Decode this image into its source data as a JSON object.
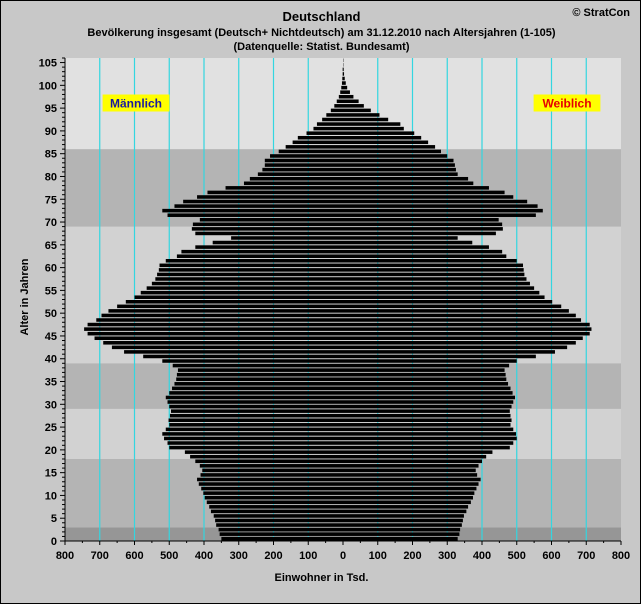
{
  "header": {
    "title": "Deutschland",
    "subtitle": "Bevölkerung  insgesamt (Deutsch+ Nichtdeutsch) am 31.12.2010 nach Altersjahren (1-105)",
    "source": "(Datenquelle: Statist. Bundesamt)",
    "copyright": "© StratCon"
  },
  "colors": {
    "bars": "#000000",
    "gridlines": "#33d6e0",
    "label_male_text": "#1a1aa0",
    "label_female_text": "#e60000",
    "label_background": "#ffff00",
    "band_dark": "#969696",
    "band_mid": "#b4b4b4",
    "band_light": "#d2d2d2",
    "band_lightest": "#e1e1e1"
  },
  "chart_data": {
    "type": "bar",
    "orientation": "horizontal-population-pyramid",
    "title": "Deutschland",
    "xlabel": "Einwohner in Tsd.",
    "ylabel": "Alter in Jahren",
    "xlim": [
      -800,
      800
    ],
    "ylim": [
      0,
      106
    ],
    "x_ticks": [
      "800",
      "700",
      "600",
      "500",
      "400",
      "300",
      "200",
      "100",
      "0",
      "100",
      "200",
      "300",
      "400",
      "500",
      "600",
      "700",
      "800"
    ],
    "y_ticks": [
      "0",
      "5",
      "10",
      "15",
      "20",
      "25",
      "30",
      "35",
      "40",
      "45",
      "50",
      "55",
      "60",
      "65",
      "70",
      "75",
      "80",
      "85",
      "90",
      "95",
      "100",
      "105"
    ],
    "grid": "vertical",
    "series": [
      {
        "name": "Männlich",
        "values": [
          350,
          355,
          358,
          365,
          368,
          372,
          380,
          385,
          392,
          398,
          402,
          408,
          415,
          420,
          410,
          405,
          412,
          425,
          440,
          455,
          500,
          505,
          515,
          520,
          510,
          500,
          502,
          498,
          495,
          500,
          505,
          510,
          500,
          492,
          485,
          480,
          478,
          475,
          490,
          520,
          575,
          630,
          665,
          690,
          715,
          735,
          745,
          735,
          710,
          695,
          675,
          650,
          625,
          600,
          582,
          565,
          550,
          540,
          535,
          530,
          528,
          510,
          478,
          465,
          425,
          375,
          322,
          425,
          435,
          432,
          412,
          505,
          520,
          485,
          460,
          420,
          390,
          338,
          285,
          268,
          245,
          232,
          225,
          225,
          210,
          185,
          165,
          145,
          130,
          105,
          85,
          75,
          60,
          48,
          35,
          25,
          18,
          12,
          8,
          5,
          3,
          2,
          1,
          1,
          0,
          0
        ],
        "bar_color": "#000000"
      },
      {
        "name": "Weiblich",
        "values": [
          330,
          335,
          337,
          342,
          345,
          348,
          355,
          360,
          368,
          374,
          378,
          384,
          390,
          396,
          386,
          382,
          390,
          400,
          412,
          430,
          480,
          490,
          500,
          498,
          490,
          482,
          485,
          482,
          480,
          485,
          490,
          495,
          488,
          482,
          475,
          470,
          468,
          465,
          478,
          500,
          555,
          610,
          645,
          670,
          690,
          710,
          715,
          710,
          685,
          670,
          650,
          628,
          602,
          580,
          565,
          550,
          538,
          528,
          522,
          520,
          518,
          500,
          470,
          458,
          420,
          372,
          330,
          440,
          460,
          458,
          448,
          555,
          575,
          560,
          530,
          490,
          465,
          420,
          375,
          360,
          330,
          325,
          322,
          318,
          300,
          282,
          265,
          245,
          225,
          205,
          175,
          165,
          130,
          105,
          80,
          60,
          45,
          30,
          20,
          12,
          8,
          5,
          3,
          2,
          1,
          1
        ],
        "bar_color": "#000000"
      }
    ],
    "annotations": [
      "Männlich",
      "Weiblich"
    ],
    "background_bands": [
      {
        "from_age": 0,
        "to_age": 3,
        "shade": "dark"
      },
      {
        "from_age": 3,
        "to_age": 18,
        "shade": "mid"
      },
      {
        "from_age": 18,
        "to_age": 29,
        "shade": "light"
      },
      {
        "from_age": 29,
        "to_age": 39,
        "shade": "mid"
      },
      {
        "from_age": 39,
        "to_age": 69,
        "shade": "light"
      },
      {
        "from_age": 69,
        "to_age": 86,
        "shade": "mid"
      },
      {
        "from_age": 86,
        "to_age": 106,
        "shade": "lightest"
      }
    ]
  }
}
